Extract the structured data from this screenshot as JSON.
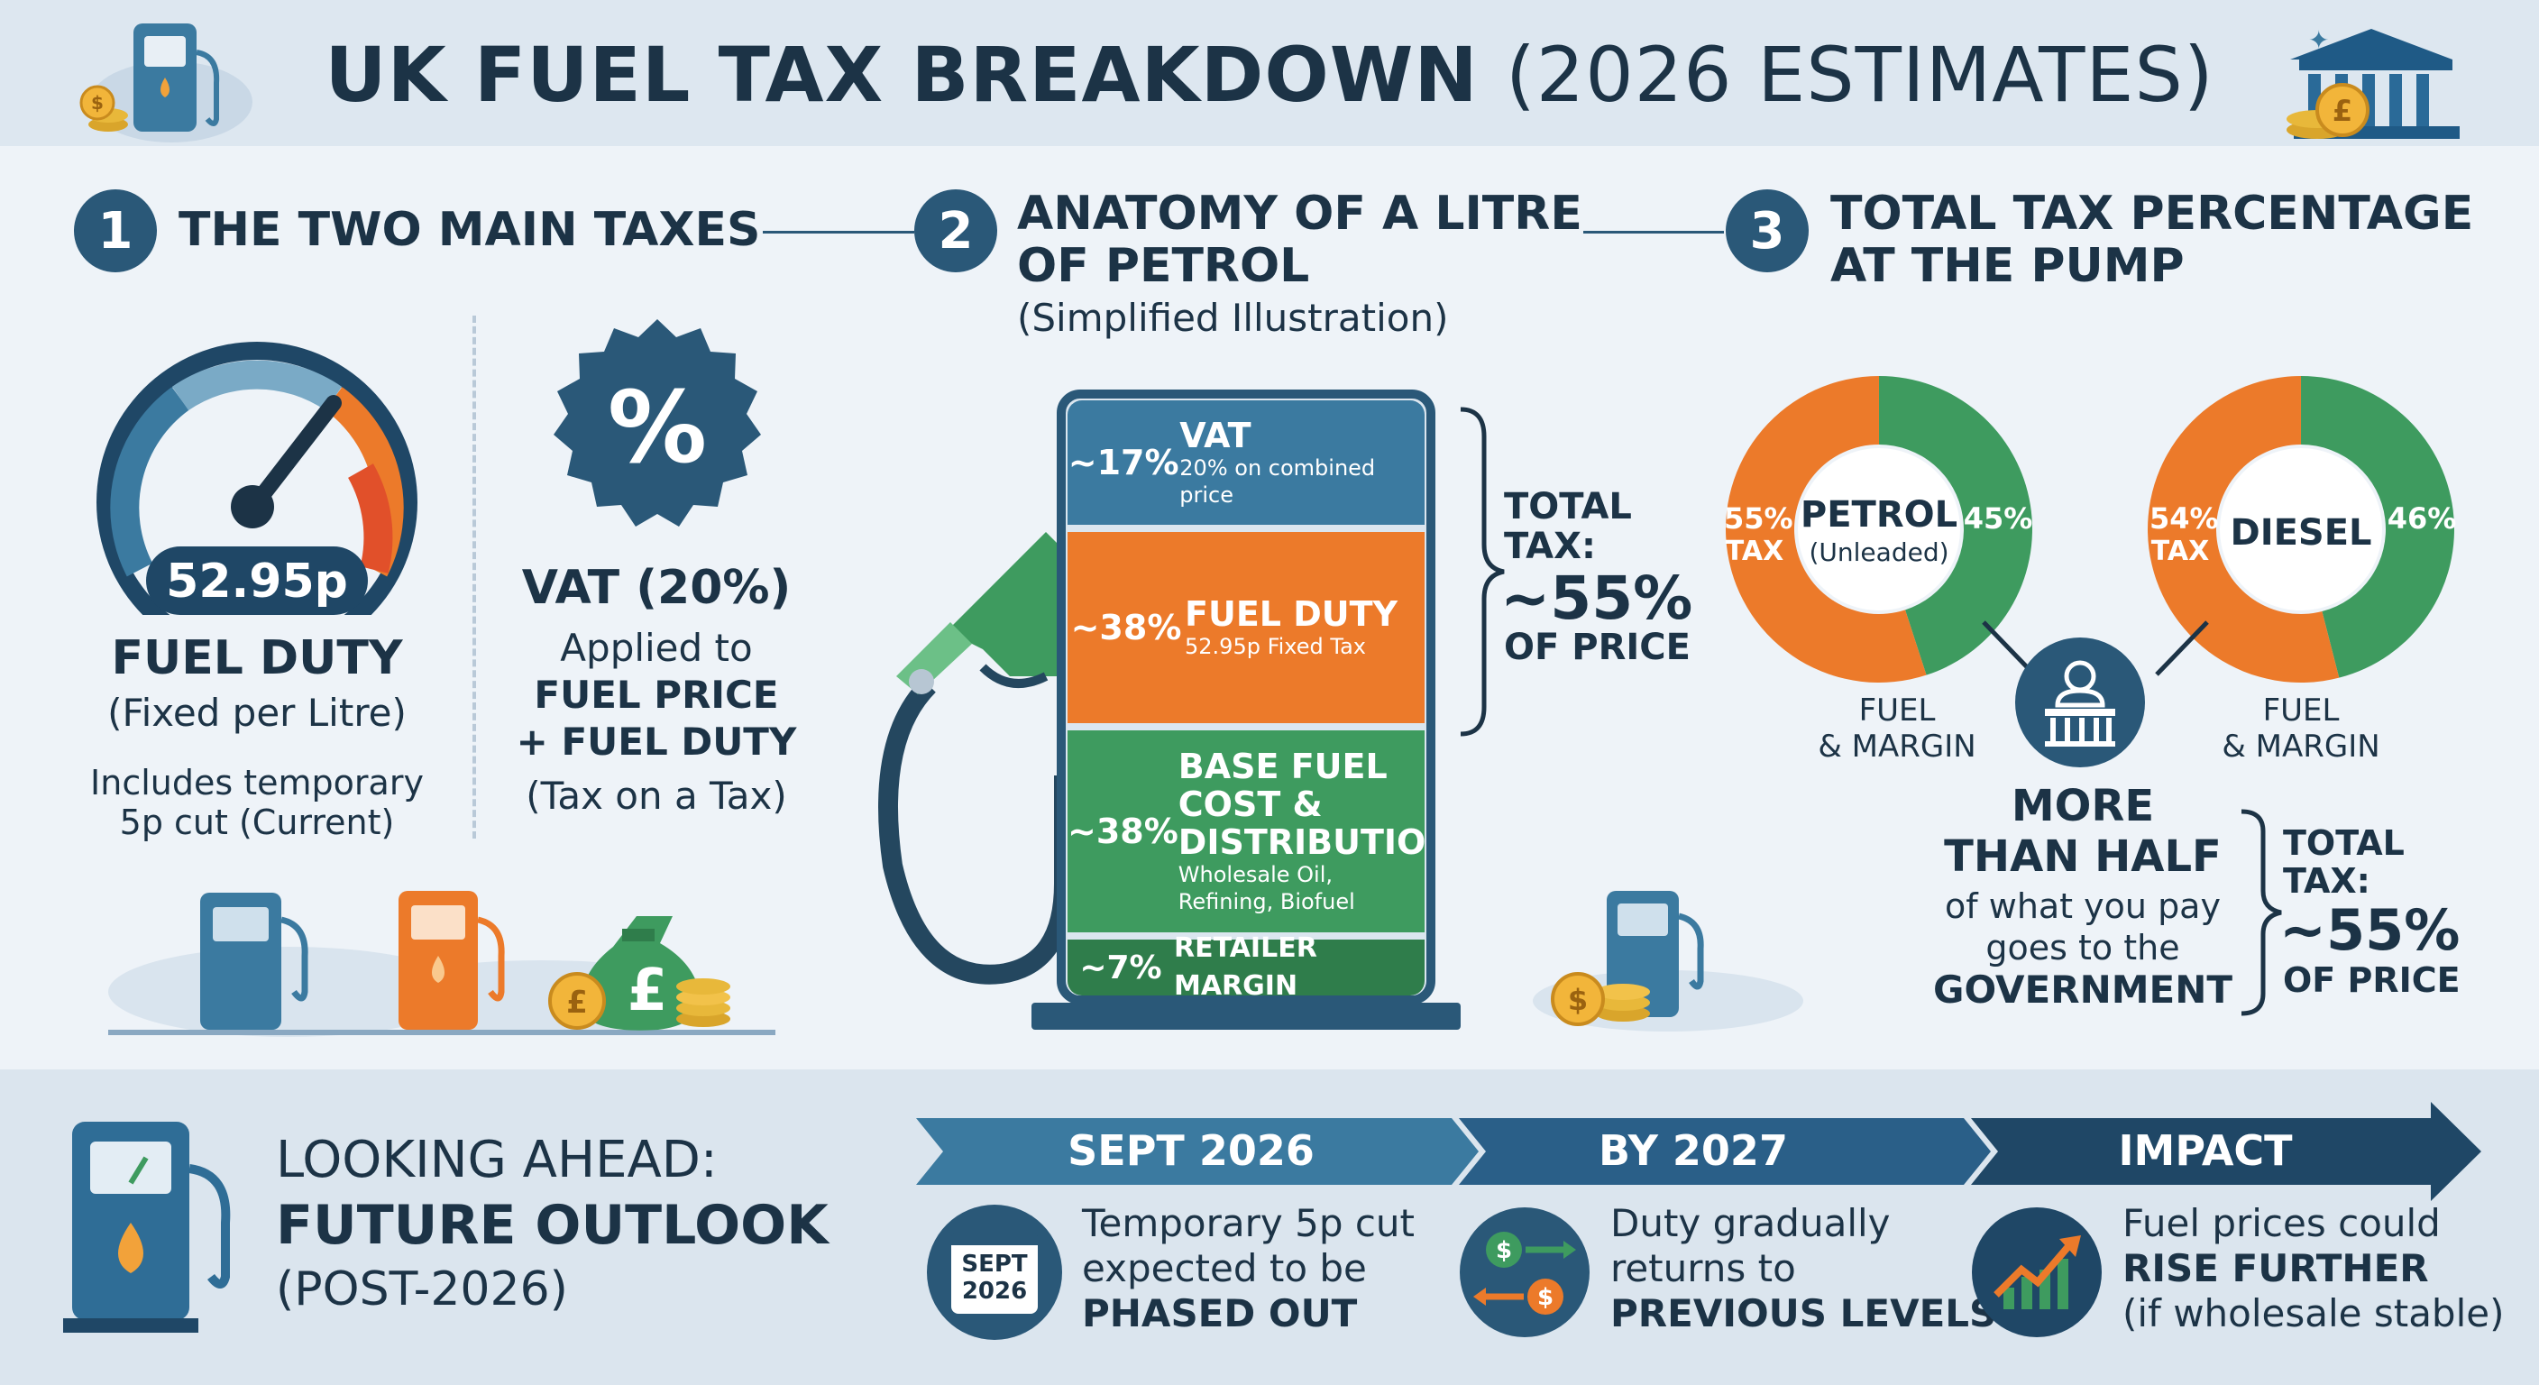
{
  "header": {
    "title_bold": "UK FUEL TAX BREAKDOWN",
    "title_light": "(2026 ESTIMATES)"
  },
  "section1": {
    "number": "1",
    "title": "THE TWO MAIN TAXES",
    "gauge_value": "52.95p",
    "fuel_duty_title": "FUEL DUTY",
    "fuel_duty_sub": "(Fixed per Litre)",
    "fuel_duty_note_1": "Includes temporary",
    "fuel_duty_note_2": "5p cut (Current)",
    "vat_symbol": "%",
    "vat_title": "VAT (20%)",
    "vat_line1": "Applied to",
    "vat_line2": "FUEL PRICE",
    "vat_line3": "+ FUEL DUTY",
    "vat_line4": "(Tax on a Tax)"
  },
  "section2": {
    "number": "2",
    "title_1": "ANATOMY OF A LITRE",
    "title_2": "OF PETROL",
    "subtitle": "(Simplified Illustration)",
    "segments": [
      {
        "pct": "~17%",
        "label": "VAT",
        "detail": "20% on combined price"
      },
      {
        "pct": "~38%",
        "label": "FUEL DUTY",
        "detail": "52.95p Fixed Tax"
      },
      {
        "pct": "~38%",
        "label_1": "BASE FUEL",
        "label_2": "COST &",
        "label_3": "DISTRIBUTION",
        "detail_1": "Wholesale Oil,",
        "detail_2": "Refining, Biofuel"
      },
      {
        "pct": "~7%",
        "label": "RETAILER MARGIN"
      }
    ],
    "total_1": "TOTAL",
    "total_2": "TAX:",
    "total_3": "~55%",
    "total_4": "OF PRICE"
  },
  "section3": {
    "number": "3",
    "title_1": "TOTAL TAX PERCENTAGE",
    "title_2": "AT THE PUMP",
    "petrol": {
      "tax_pct": "55%",
      "tax_label": "TAX",
      "fuel_pct": "45%",
      "name": "PETROL",
      "sub": "(Unleaded)",
      "tax_value": 55
    },
    "diesel": {
      "tax_pct": "54%",
      "tax_label": "TAX",
      "fuel_pct": "46%",
      "name": "DIESEL",
      "tax_value": 54
    },
    "fuel_margin_1": "FUEL",
    "fuel_margin_2": "& MARGIN",
    "more_1": "MORE",
    "more_2": "THAN HALF",
    "more_3": "of what you pay",
    "more_4": "goes to the",
    "more_5": "GOVERNMENT",
    "total_1": "TOTAL",
    "total_2": "TAX:",
    "total_3": "~55%",
    "total_4": "OF PRICE"
  },
  "footer": {
    "ahead_1": "LOOKING AHEAD:",
    "ahead_2": "FUTURE OUTLOOK",
    "ahead_3": "(POST-2026)",
    "steps": [
      {
        "head": "SEPT 2026",
        "icon_1": "SEPT",
        "icon_2": "2026",
        "line1": "Temporary 5p cut",
        "line2": "expected to be",
        "line3": "PHASED OUT"
      },
      {
        "head": "BY 2027",
        "line1": "Duty gradually",
        "line2": "returns to",
        "line3": "PREVIOUS LEVELS"
      },
      {
        "head": "IMPACT",
        "line1": "Fuel prices could",
        "line2": "RISE FURTHER",
        "line3": "(if wholesale stable)"
      }
    ]
  },
  "colors": {
    "navy": "#1c3346",
    "blue": "#3b7aa0",
    "orange": "#ec7a2a",
    "green": "#3e9b5f",
    "dark_green": "#2f7d4b"
  }
}
